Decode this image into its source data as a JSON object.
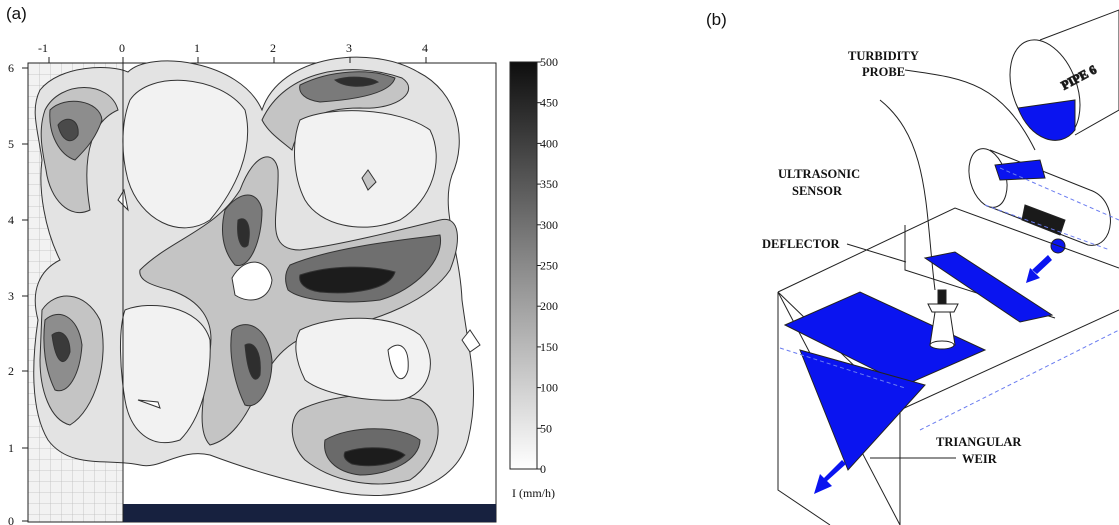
{
  "panel_a": {
    "label": "(a)",
    "x_ticks": [
      "-1",
      "0",
      "1",
      "2",
      "3",
      "4"
    ],
    "y_ticks": [
      "0",
      "1",
      "2",
      "3",
      "4",
      "5",
      "6"
    ],
    "colorbar": {
      "ticks": [
        "0",
        "50",
        "100",
        "150",
        "200",
        "250",
        "300",
        "350",
        "400",
        "450",
        "500"
      ],
      "unit_label": "I (mm/h)",
      "low_color": "#ffffff",
      "high_color": "#111111"
    }
  },
  "panel_b": {
    "label": "(b)",
    "labels": {
      "pipe": "PIPE 6",
      "turbidity_1": "TURBIDITY",
      "turbidity_2": "PROBE",
      "ultrasonic_1": "ULTRASONIC",
      "ultrasonic_2": "SENSOR",
      "deflector": "DEFLECTOR",
      "weir_1": "TRIANGULAR",
      "weir_2": "WEIR"
    },
    "water_color": "#0a14f0"
  }
}
